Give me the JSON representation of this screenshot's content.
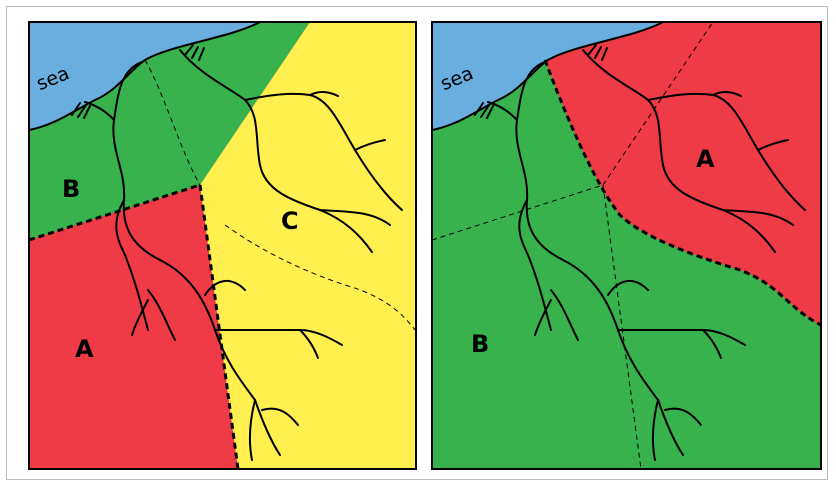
{
  "panels": [
    {
      "sea_label": "sea",
      "regions": [
        {
          "label": "A",
          "color": "#ef3b45"
        },
        {
          "label": "B",
          "color": "#37b24d"
        },
        {
          "label": "C",
          "color": "#fff04f"
        }
      ]
    },
    {
      "sea_label": "sea",
      "regions": [
        {
          "label": "A",
          "color": "#ef3b45"
        },
        {
          "label": "B",
          "color": "#37b24d"
        }
      ]
    }
  ],
  "colors": {
    "sea": "#6aaee0",
    "border": "#000000"
  }
}
